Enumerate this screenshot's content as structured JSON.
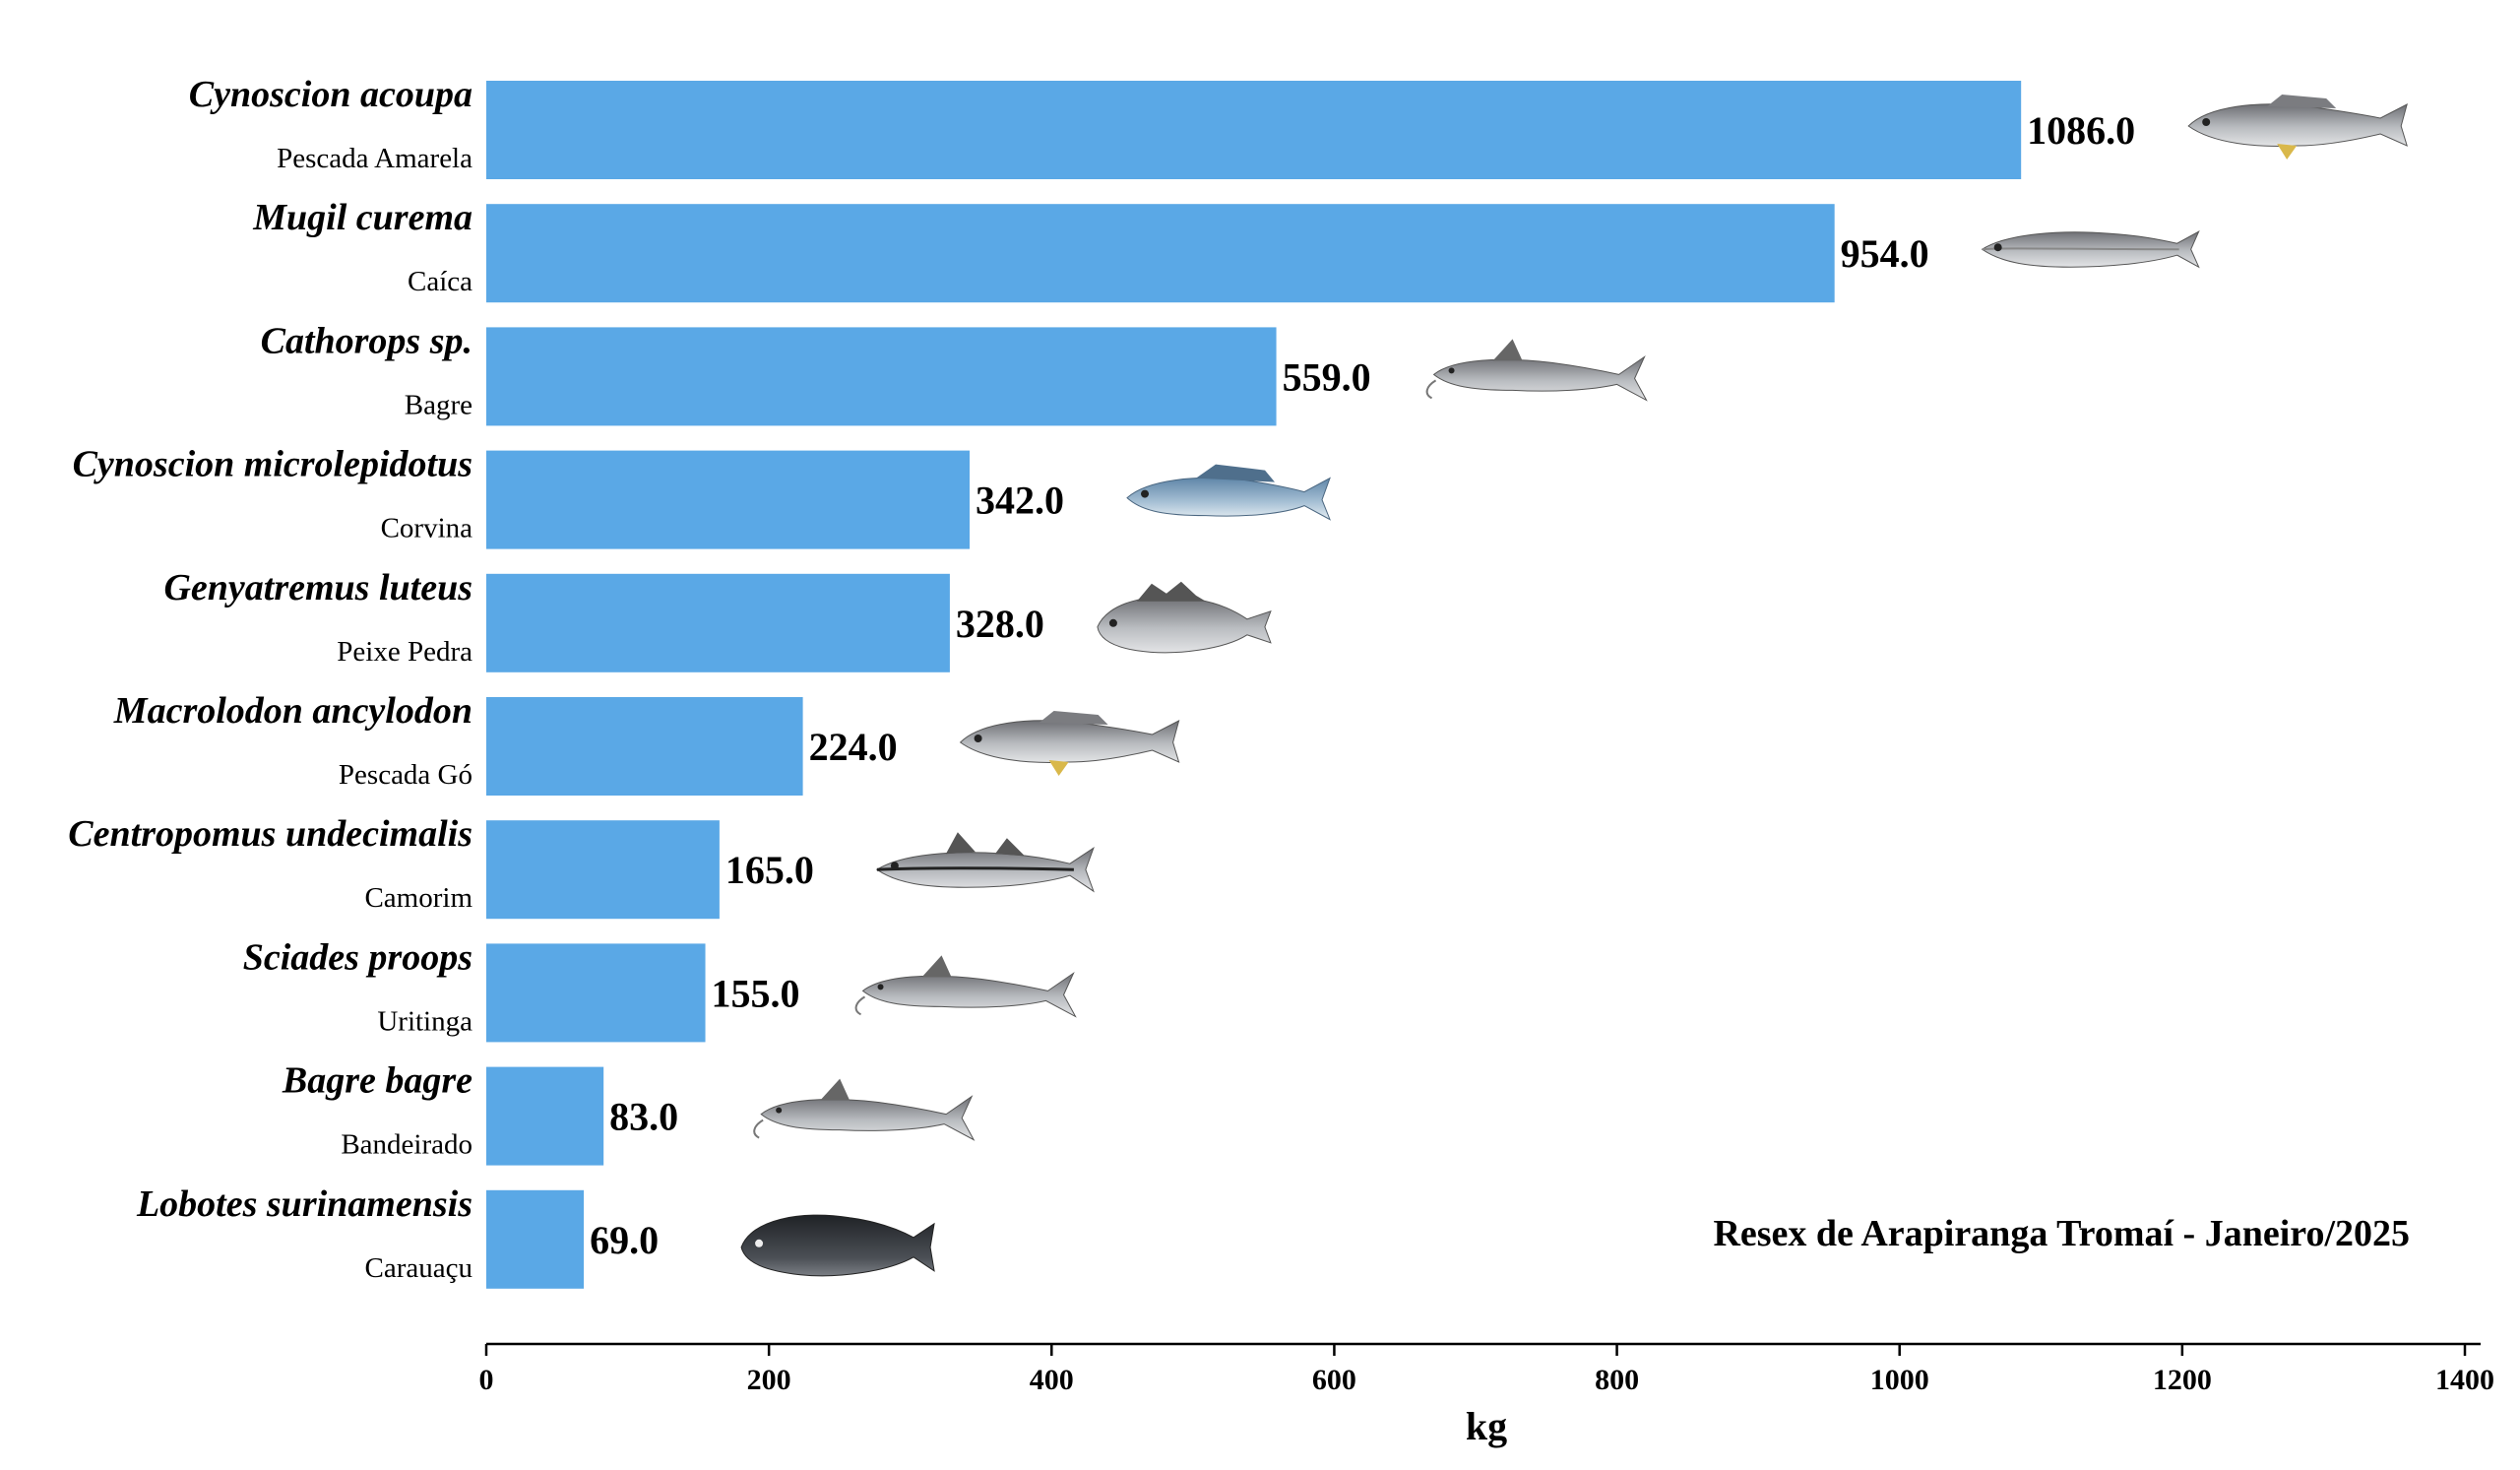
{
  "chart_data": {
    "type": "bar",
    "orientation": "horizontal",
    "categories": [
      {
        "scientific": "Cynoscion acoupa",
        "common": "Pescada Amarela"
      },
      {
        "scientific": "Mugil curema",
        "common": "Caíca"
      },
      {
        "scientific": "Cathorops sp.",
        "common": "Bagre"
      },
      {
        "scientific": "Cynoscion microlepidotus",
        "common": "Corvina"
      },
      {
        "scientific": "Genyatremus luteus",
        "common": "Peixe Pedra"
      },
      {
        "scientific": "Macrolodon ancylodon",
        "common": "Pescada Gó"
      },
      {
        "scientific": "Centropomus undecimalis",
        "common": "Camorim"
      },
      {
        "scientific": "Sciades proops",
        "common": "Uritinga"
      },
      {
        "scientific": "Bagre bagre",
        "common": "Bandeirado"
      },
      {
        "scientific": "Lobotes surinamensis",
        "common": "Carauaçu"
      }
    ],
    "values": [
      1086.0,
      954.0,
      559.0,
      342.0,
      328.0,
      224.0,
      165.0,
      155.0,
      83.0,
      69.0
    ],
    "value_labels": [
      "1086.0",
      "954.0",
      "559.0",
      "342.0",
      "328.0",
      "224.0",
      "165.0",
      "155.0",
      "83.0",
      "69.0"
    ],
    "xlabel": "kg",
    "xlim": [
      0,
      1400
    ],
    "xticks": [
      0,
      200,
      400,
      600,
      800,
      1000,
      1200,
      1400
    ],
    "annotation": "Resex de Arapiranga Tromaí - Janeiro/2025",
    "grid": false,
    "bar_color": "#5aa8e6",
    "fish_icons": [
      "weakfish-icon",
      "mullet-icon",
      "catfish-icon",
      "corvina-icon",
      "grunt-icon",
      "weakfish-icon",
      "snook-icon",
      "catfish-icon",
      "catfish-icon",
      "tripletail-icon"
    ]
  }
}
